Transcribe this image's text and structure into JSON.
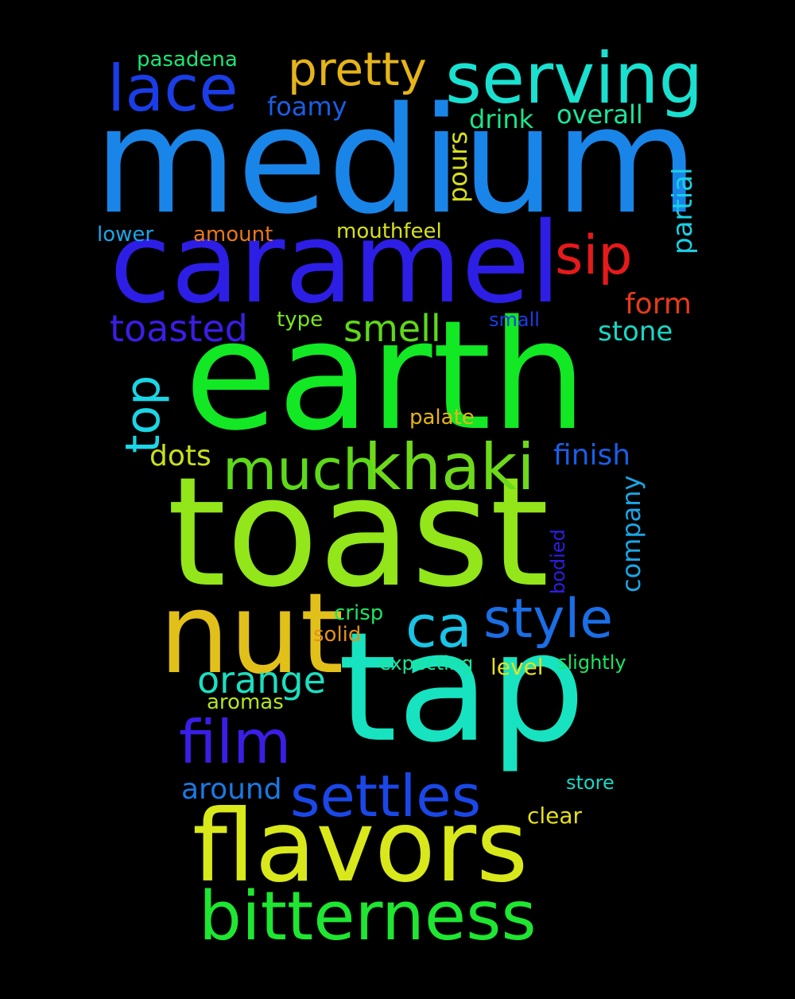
{
  "words": {
    "medium": {
      "text": "medium",
      "color": "#1a85e8"
    },
    "earth": {
      "text": "earth",
      "color": "#12e824"
    },
    "toast": {
      "text": "toast",
      "color": "#92e61a"
    },
    "tap": {
      "text": "tap",
      "color": "#17e3c0"
    },
    "caramel": {
      "text": "caramel",
      "color": "#2d1ee6"
    },
    "flavors": {
      "text": "flavors",
      "color": "#d9e81a"
    },
    "nut": {
      "text": "nut",
      "color": "#e2c01a"
    },
    "bitterness": {
      "text": "bitterness",
      "color": "#1ee631"
    },
    "khaki": {
      "text": "khaki",
      "color": "#6ed91a"
    },
    "serving": {
      "text": "serving",
      "color": "#1ae0d0"
    },
    "lace": {
      "text": "lace",
      "color": "#1a3de6"
    },
    "film": {
      "text": "film",
      "color": "#3a1ee6"
    },
    "settles": {
      "text": "settles",
      "color": "#1a47e8"
    },
    "much": {
      "text": "much",
      "color": "#5ed91a"
    },
    "ca": {
      "text": "ca",
      "color": "#1ac4e6"
    },
    "style": {
      "text": "style",
      "color": "#1a6ee6"
    },
    "sip": {
      "text": "sip",
      "color": "#e61a1a"
    },
    "pretty": {
      "text": "pretty",
      "color": "#e6b41a"
    },
    "orange": {
      "text": "orange",
      "color": "#1ae0c0"
    },
    "top": {
      "text": "top",
      "color": "#1ad6e6"
    },
    "toasted": {
      "text": "toasted",
      "color": "#3a1ee6"
    },
    "smell": {
      "text": "smell",
      "color": "#5ed91a"
    },
    "finish": {
      "text": "finish",
      "color": "#1a5ee6"
    },
    "stone": {
      "text": "stone",
      "color": "#1ad6c4"
    },
    "form": {
      "text": "form",
      "color": "#e63a1a"
    },
    "around": {
      "text": "around",
      "color": "#1a7ae6"
    },
    "dots": {
      "text": "dots",
      "color": "#c9e01a"
    },
    "drink": {
      "text": "drink",
      "color": "#1ae68a"
    },
    "overall": {
      "text": "overall",
      "color": "#1ae6a0"
    },
    "foamy": {
      "text": "foamy",
      "color": "#1a5ee6"
    },
    "pours": {
      "text": "pours",
      "color": "#d6e01a"
    },
    "partial": {
      "text": "partial",
      "color": "#1ad0e6"
    },
    "company": {
      "text": "company",
      "color": "#1aa6e6"
    },
    "bodied": {
      "text": "bodied",
      "color": "#2d1ee6"
    },
    "pasadena": {
      "text": "pasadena",
      "color": "#1ae676"
    },
    "lower": {
      "text": "lower",
      "color": "#1aa6e6"
    },
    "amount": {
      "text": "amount",
      "color": "#e6781a"
    },
    "mouthfeel": {
      "text": "mouthfeel",
      "color": "#d6e01a"
    },
    "type": {
      "text": "type",
      "color": "#7ae61a"
    },
    "small": {
      "text": "small",
      "color": "#1a3de6"
    },
    "palate": {
      "text": "palate",
      "color": "#e6b41a"
    },
    "crisp": {
      "text": "crisp",
      "color": "#1ae662"
    },
    "solid": {
      "text": "solid",
      "color": "#e6901a"
    },
    "expecting": {
      "text": "expecting",
      "color": "#1ae69a"
    },
    "level": {
      "text": "level",
      "color": "#e6e01a"
    },
    "slightly": {
      "text": "slightly",
      "color": "#1ae662"
    },
    "aromas": {
      "text": "aromas",
      "color": "#b4e61a"
    },
    "store": {
      "text": "store",
      "color": "#1ad6c4"
    },
    "clear": {
      "text": "clear",
      "color": "#e6e01a"
    }
  }
}
